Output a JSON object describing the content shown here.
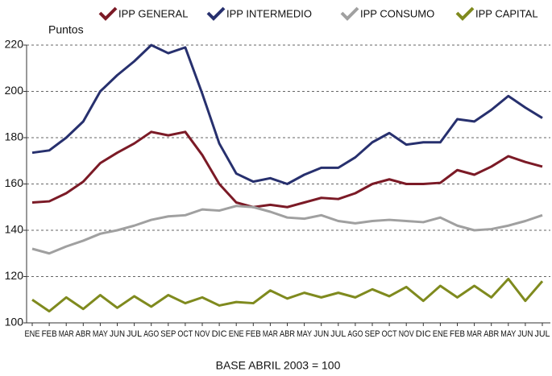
{
  "chart_data": {
    "type": "line",
    "y_label": "Puntos",
    "x_label": "BASE ABRIL 2003 = 100",
    "categories": [
      "ENE",
      "FEB",
      "MAR",
      "ABR",
      "MAY",
      "JUN",
      "JUL",
      "AGO",
      "SEP",
      "OCT",
      "NOV",
      "DIC",
      "ENE",
      "FEB",
      "MAR",
      "ABR",
      "MAY",
      "JUN",
      "JUL",
      "AGO",
      "SEP",
      "OCT",
      "NOV",
      "DIC",
      "ENE",
      "FEB",
      "MAR",
      "ABR",
      "MAY",
      "JUN",
      "JUL"
    ],
    "series": [
      {
        "name": "IPP GENERAL",
        "color": "#7b1a26",
        "values": [
          152,
          152.5,
          156,
          161,
          169,
          173.5,
          177.5,
          182.5,
          181,
          182.5,
          172.5,
          160,
          152,
          150,
          151,
          150,
          152,
          154,
          153.5,
          156,
          160,
          162,
          160,
          160,
          160.5,
          166,
          164,
          167.5,
          172,
          169.5,
          167.5
        ]
      },
      {
        "name": "IPP INTERMEDIO",
        "color": "#27306e",
        "values": [
          173.5,
          174.5,
          180,
          187,
          200,
          207,
          213,
          220,
          216.5,
          219,
          199,
          177.5,
          164.5,
          161,
          162.5,
          160,
          164,
          167,
          167,
          171.5,
          178,
          182,
          177,
          178,
          178,
          188,
          187,
          192,
          198,
          193,
          188.5
        ]
      },
      {
        "name": "IPP CONSUMO",
        "color": "#a0a0a0",
        "values": [
          132,
          130,
          133,
          135.5,
          138.5,
          140,
          142,
          144.5,
          146,
          146.5,
          149,
          148.5,
          150.5,
          150,
          148,
          145.5,
          145,
          146.5,
          144,
          143,
          144,
          144.5,
          144,
          143.5,
          145.5,
          142,
          140,
          140.5,
          142,
          144,
          146.5
        ]
      },
      {
        "name": "IPP CAPITAL",
        "color": "#7f8a1e",
        "values": [
          110,
          105,
          111,
          106,
          112,
          106.5,
          111.5,
          107,
          112,
          108.5,
          111,
          107.5,
          109,
          108.5,
          114,
          110.5,
          113,
          111,
          113,
          111,
          114.5,
          111.5,
          115.5,
          109.5,
          116,
          111,
          116,
          111,
          119,
          109.5,
          118
        ]
      }
    ],
    "ylim": [
      100,
      220
    ],
    "yticks": [
      100,
      120,
      140,
      160,
      180,
      200,
      220
    ],
    "grid": true
  }
}
